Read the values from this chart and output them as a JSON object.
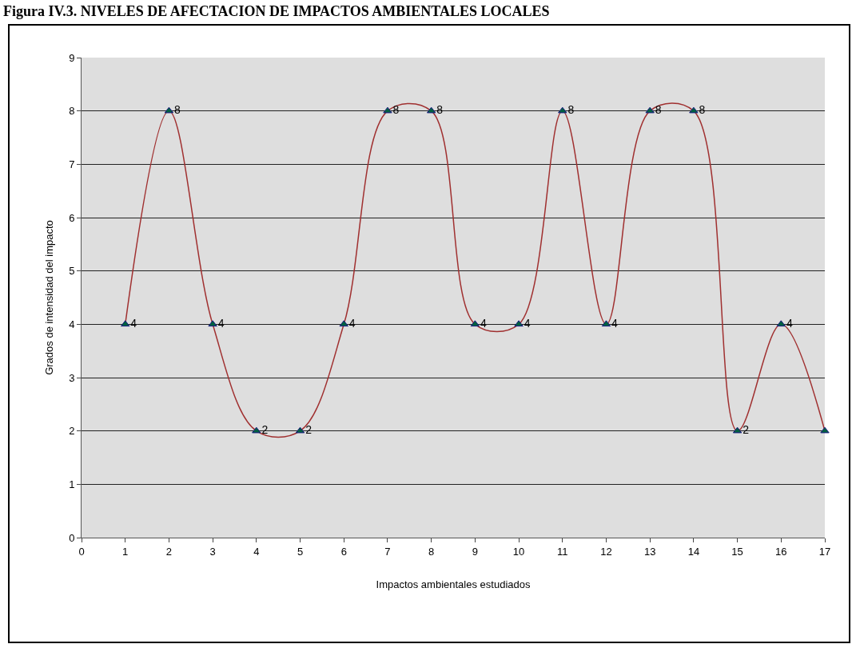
{
  "chart_data": {
    "type": "line",
    "title": "Figura IV.3. NIVELES DE AFECTACION DE  IMPACTOS AMBIENTALES LOCALES",
    "xlabel": "Impactos ambientales estudiados",
    "ylabel": "Grados de intensidad del impacto",
    "x": [
      1,
      2,
      3,
      4,
      5,
      6,
      7,
      8,
      9,
      10,
      11,
      12,
      13,
      14,
      15,
      16,
      17
    ],
    "series": [
      {
        "color": "#a03030",
        "values": [
          4,
          8,
          4,
          2,
          2,
          4,
          8,
          8,
          4,
          4,
          8,
          4,
          8,
          8,
          2,
          4,
          2
        ],
        "value_labels": [
          "4",
          "8",
          "4",
          "2",
          "2",
          "4",
          "8",
          "8",
          "4",
          "4",
          "8",
          "4",
          "8",
          "8",
          "2",
          "4",
          null
        ]
      }
    ],
    "xlim": [
      0,
      17
    ],
    "xticks": [
      0,
      1,
      2,
      3,
      4,
      5,
      6,
      7,
      8,
      9,
      10,
      11,
      12,
      13,
      14,
      15,
      16,
      17
    ],
    "ylim": [
      0,
      9
    ],
    "yticks": [
      0,
      1,
      2,
      3,
      4,
      5,
      6,
      7,
      8,
      9
    ],
    "grid": "y",
    "legend": false,
    "marker": "triangle",
    "line_style": "solid"
  }
}
